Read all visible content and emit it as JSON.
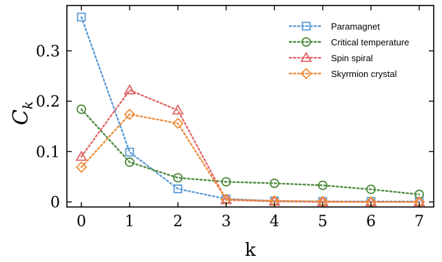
{
  "chart_data": {
    "type": "line",
    "title": "",
    "xlabel": "k",
    "ylabel": "C",
    "ylabel_subscript": "k",
    "x": [
      0,
      1,
      2,
      3,
      4,
      5,
      6,
      7
    ],
    "xlim": [
      -0.3,
      7.3
    ],
    "ylim": [
      -0.01,
      0.39
    ],
    "xticks": [
      0,
      1,
      2,
      3,
      4,
      5,
      6,
      7
    ],
    "xtick_labels": [
      "0",
      "1",
      "2",
      "3",
      "4",
      "5",
      "6",
      "7"
    ],
    "yticks": [
      0,
      0.1,
      0.2,
      0.3
    ],
    "ytick_labels": [
      "0",
      "0.1",
      "0.2",
      "0.3"
    ],
    "grid": false,
    "legend_position": "top-right",
    "series": [
      {
        "name": "Paramagnet",
        "color": "#5b9bd5",
        "marker": "square",
        "values": [
          0.367,
          0.099,
          0.026,
          0.006,
          0.002,
          0.001,
          0.001,
          0.001
        ]
      },
      {
        "name": "Critical temperature",
        "color": "#4c8a3c",
        "marker": "circle",
        "values": [
          0.184,
          0.079,
          0.048,
          0.04,
          0.037,
          0.033,
          0.025,
          0.015
        ]
      },
      {
        "name": "Spin spiral",
        "color": "#e06666",
        "marker": "triangle",
        "values": [
          0.09,
          0.222,
          0.182,
          0.004,
          0.001,
          0.0,
          0.0,
          0.0
        ]
      },
      {
        "name": "Skyrmion crystal",
        "color": "#ed8c3c",
        "marker": "diamond",
        "values": [
          0.069,
          0.174,
          0.156,
          0.005,
          0.002,
          0.001,
          0.0,
          0.0
        ]
      }
    ]
  }
}
